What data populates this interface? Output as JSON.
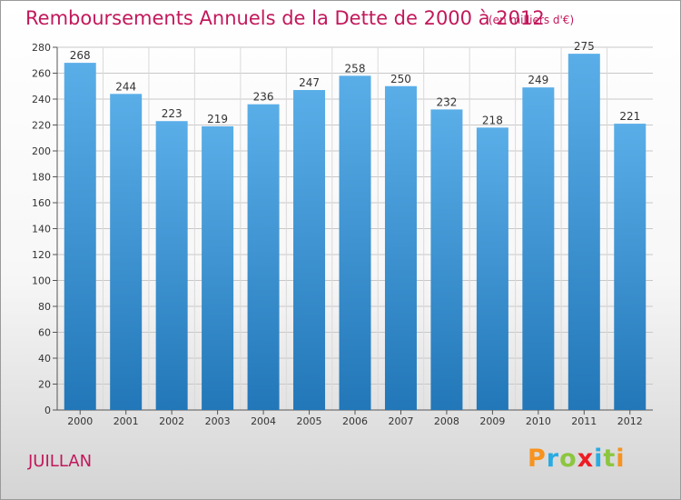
{
  "header": {
    "title": "Remboursements Annuels de la Dette de 2000 à 2012",
    "unit": "(en milliers d'€)"
  },
  "footer": {
    "commune": "JUILLAN",
    "logo_text": "Proxiti",
    "logo_colors": [
      "#f7931e",
      "#29abe2",
      "#8cc63f",
      "#ed1c24",
      "#29abe2",
      "#8cc63f",
      "#f7931e"
    ]
  },
  "chart_data": {
    "type": "bar",
    "title": "Remboursements Annuels de la Dette de 2000 à 2012",
    "xlabel": "",
    "ylabel": "",
    "categories": [
      "2000",
      "2001",
      "2002",
      "2003",
      "2004",
      "2005",
      "2006",
      "2007",
      "2008",
      "2009",
      "2010",
      "2011",
      "2012"
    ],
    "values": [
      268,
      244,
      223,
      219,
      236,
      247,
      258,
      250,
      232,
      218,
      249,
      275,
      221
    ],
    "ylim": [
      0,
      280
    ],
    "yticks": [
      0,
      20,
      40,
      60,
      80,
      100,
      120,
      140,
      160,
      180,
      200,
      220,
      240,
      260,
      280
    ],
    "grid": true,
    "bar_color_top": "#5aaee8",
    "bar_color_bottom": "#2277b8"
  }
}
